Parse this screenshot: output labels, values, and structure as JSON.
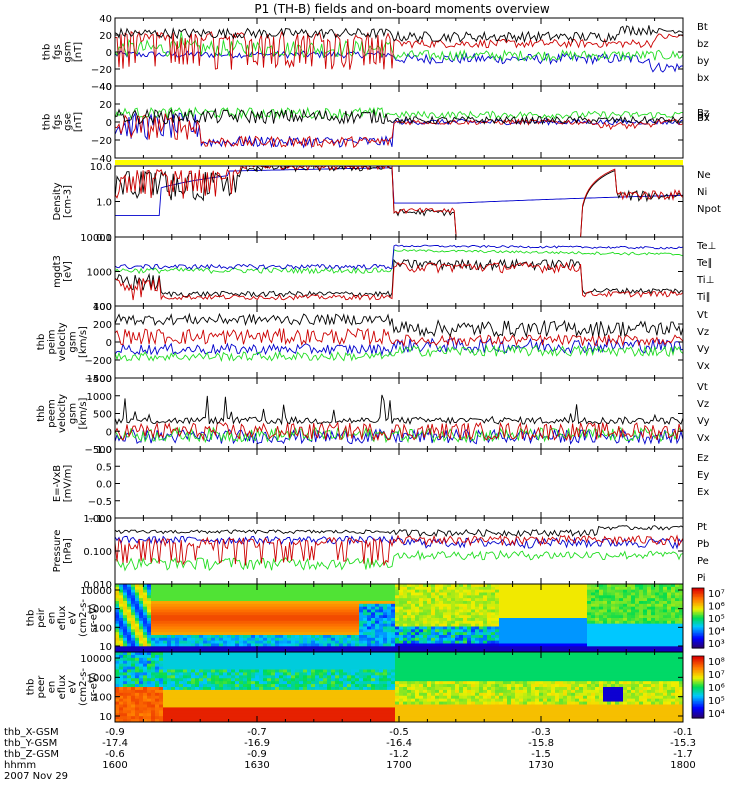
{
  "title": "P1 (TH-B) fields and on-board moments overview",
  "colors": {
    "black": "#000000",
    "red": "#cc0000",
    "green": "#22dd22",
    "blue": "#0000cc",
    "yellow": "#ffff00"
  },
  "chart_data": [
    {
      "id": "fgs",
      "type": "line",
      "ylabel": [
        "thb",
        "fgs",
        "gsm",
        "[nT]"
      ],
      "ylim": [
        -40,
        40
      ],
      "yticks": [
        "40",
        "20",
        "0",
        "−20",
        "−40"
      ],
      "legend": [
        {
          "label": "Bt",
          "color": "black"
        },
        {
          "label": "bz",
          "color": "red"
        },
        {
          "label": "by",
          "color": "green"
        },
        {
          "label": "bx",
          "color": "blue"
        }
      ]
    },
    {
      "id": "fgs_gse",
      "type": "line",
      "ylabel": [
        "thb",
        "fgs",
        "gse",
        "[nT]"
      ],
      "ylim": [
        -40,
        40
      ],
      "yticks": [
        "40",
        "20",
        "0",
        "−20",
        "−40"
      ],
      "legend": [
        {
          "label": "Bz",
          "color": "red"
        },
        {
          "label": "By",
          "color": "green"
        },
        {
          "label": "Bx",
          "color": "blue"
        }
      ]
    },
    {
      "id": "density",
      "type": "line",
      "ylabel": [
        "Density",
        "[cm-3]"
      ],
      "scale": "log",
      "ylim": [
        0.1,
        10
      ],
      "yticks": [
        "10.0",
        "1.0",
        "0.1"
      ],
      "legend": [
        {
          "label": "Ne",
          "color": "red"
        },
        {
          "label": "Ni",
          "color": "black"
        },
        {
          "label": "Npot",
          "color": "blue"
        }
      ]
    },
    {
      "id": "temp",
      "type": "line",
      "ylabel": [
        "mgdt3",
        "[eV]"
      ],
      "scale": "log",
      "ylim": [
        20,
        10000
      ],
      "yticks": [
        "10000",
        "1000",
        "100"
      ],
      "legend": [
        {
          "label": "Te⊥",
          "color": "red"
        },
        {
          "label": "Te∥",
          "color": "black"
        },
        {
          "label": "Ti⊥",
          "color": "blue"
        },
        {
          "label": "Ti∥",
          "color": "green"
        }
      ]
    },
    {
      "id": "peim",
      "type": "line",
      "ylabel": [
        "thb",
        "peim",
        "velocity",
        "gsm",
        "[km/s]"
      ],
      "ylim": [
        -400,
        400
      ],
      "yticks": [
        "400",
        "200",
        "0",
        "−200",
        "−400"
      ],
      "legend": [
        {
          "label": "Vt",
          "color": "black"
        },
        {
          "label": "Vz",
          "color": "red"
        },
        {
          "label": "Vy",
          "color": "green"
        },
        {
          "label": "Vx",
          "color": "blue"
        }
      ]
    },
    {
      "id": "peem",
      "type": "line",
      "ylabel": [
        "thb",
        "peem",
        "velocity",
        "gsm",
        "[km/s]"
      ],
      "ylim": [
        -500,
        1500
      ],
      "yticks": [
        "1500",
        "1000",
        "500",
        "0",
        "−500"
      ],
      "legend": [
        {
          "label": "Vt",
          "color": "black"
        },
        {
          "label": "Vz",
          "color": "red"
        },
        {
          "label": "Vy",
          "color": "green"
        },
        {
          "label": "Vx",
          "color": "blue"
        }
      ]
    },
    {
      "id": "efield",
      "type": "line",
      "ylabel": [
        "E=-VxB",
        "[mV/m]"
      ],
      "ylim": [
        -1,
        1
      ],
      "yticks": [
        "1.0",
        "0.5",
        "0.0",
        "−0.5",
        "−1.0"
      ],
      "legend": [
        {
          "label": "Ez",
          "color": "red"
        },
        {
          "label": "Ey",
          "color": "green"
        },
        {
          "label": "Ex",
          "color": "blue"
        }
      ]
    },
    {
      "id": "pressure",
      "type": "line",
      "ylabel": [
        "Pressure",
        "[nPa]"
      ],
      "scale": "log",
      "ylim": [
        0.003,
        1
      ],
      "yticks": [
        "1.000",
        "0.100",
        "0.010"
      ],
      "legend": [
        {
          "label": "Pt",
          "color": "black"
        },
        {
          "label": "Pb",
          "color": "red"
        },
        {
          "label": "Pe",
          "color": "green"
        },
        {
          "label": "Pi",
          "color": "blue"
        }
      ]
    },
    {
      "id": "peir_eflux",
      "type": "heatmap",
      "ylabel": [
        "thb",
        "peir",
        "en",
        "eflux",
        "eV",
        "(cm2-s-",
        "sr-eV)"
      ],
      "scale": "log",
      "ylim": [
        10,
        20000
      ],
      "yticks": [
        "10000",
        "1000",
        "100",
        "10"
      ],
      "colorbar": {
        "ticks": [
          "10⁷",
          "10⁶",
          "10⁵",
          "10⁴",
          "10³"
        ]
      }
    },
    {
      "id": "peer_eflux",
      "type": "heatmap",
      "ylabel": [
        "thb",
        "peer",
        "en",
        "eflux",
        "eV",
        "(cm2-s-",
        "sr-eV)"
      ],
      "scale": "log",
      "ylim": [
        10,
        20000
      ],
      "yticks": [
        "10000",
        "1000",
        "100",
        "10"
      ],
      "colorbar": {
        "ticks": [
          "10⁸",
          "10⁷",
          "10⁶",
          "10⁵",
          "10⁴"
        ]
      }
    }
  ],
  "xaxis": {
    "row_labels": [
      "thb_X-GSM",
      "thb_Y-GSM",
      "thb_Z-GSM",
      "hhmm"
    ],
    "date": "2007 Nov 29",
    "ticks": [
      {
        "time": 1600,
        "vals": [
          "-0.9",
          "-17.4",
          "-0.6",
          "1600"
        ]
      },
      {
        "time": 1630,
        "vals": [
          "-0.7",
          "-16.9",
          "-0.9",
          "1630"
        ]
      },
      {
        "time": 1700,
        "vals": [
          "-0.5",
          "-16.4",
          "-1.2",
          "1700"
        ]
      },
      {
        "time": 1730,
        "vals": [
          "-0.3",
          "-15.8",
          "-1.5",
          "1730"
        ]
      },
      {
        "time": 1800,
        "vals": [
          "-0.1",
          "-15.3",
          "-1.7",
          "1800"
        ]
      }
    ]
  }
}
